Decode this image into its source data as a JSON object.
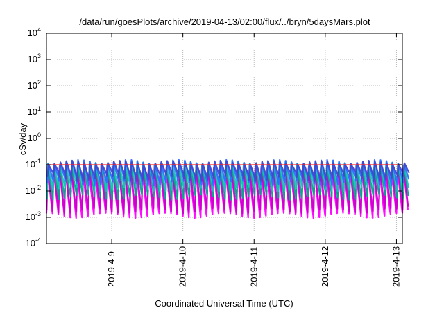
{
  "title": "/data/run/goesPlots/archive/2019-04-13/02:00/flux/../bryn/5daysMars.plot",
  "colors": {
    "grid": "#b8b8b8",
    "frame": "#000000",
    "threshold": "#ff2020",
    "series": [
      "#ff00ff",
      "#cc00cc",
      "#00aa88",
      "#1fbfbf",
      "#2d6cff",
      "#8a2be2",
      "#ff2b2b",
      "#3f48cc"
    ]
  },
  "chart_data": {
    "type": "line",
    "title": "/data/run/goesPlots/archive/2019-04-13/02:00/flux/../bryn/5daysMars.plot",
    "xlabel": "Coordinated Universal Time (UTC)",
    "ylabel": "cSv/day",
    "y_scale": "log",
    "ylim": [
      0.0001,
      10000
    ],
    "y_ticks": [
      {
        "base": "10",
        "exp": "-4",
        "value": 0.0001
      },
      {
        "base": "10",
        "exp": "-3",
        "value": 0.001
      },
      {
        "base": "10",
        "exp": "-2",
        "value": 0.01
      },
      {
        "base": "10",
        "exp": "-1",
        "value": 0.1
      },
      {
        "base": "10",
        "exp": "0",
        "value": 1
      },
      {
        "base": "10",
        "exp": "1",
        "value": 10
      },
      {
        "base": "10",
        "exp": "2",
        "value": 100
      },
      {
        "base": "10",
        "exp": "3",
        "value": 1000
      },
      {
        "base": "10",
        "exp": "4",
        "value": 10000
      }
    ],
    "x_range": [
      "2019-04-08 02:00",
      "2019-04-13 02:00"
    ],
    "x_ticks": [
      {
        "label": "2019-4-9",
        "value": "2019-04-09"
      },
      {
        "label": "2019-4-10",
        "value": "2019-04-10"
      },
      {
        "label": "2019-4-11",
        "value": "2019-04-11"
      },
      {
        "label": "2019-4-12",
        "value": "2019-04-12"
      },
      {
        "label": "2019-4-13",
        "value": "2019-04-13"
      }
    ],
    "grid": true,
    "threshold": 0.1,
    "period_hours": 2,
    "series": [
      {
        "color": "#ff00ff",
        "peak": 0.06,
        "trough": 0.0012
      },
      {
        "color": "#cc00cc",
        "peak": 0.08,
        "trough": 0.0018
      },
      {
        "color": "#00aa88",
        "peak": 0.095,
        "trough": 0.006
      },
      {
        "color": "#1fbfbf",
        "peak": 0.11,
        "trough": 0.012
      },
      {
        "color": "#2d6cff",
        "peak": 0.13,
        "trough": 0.02
      },
      {
        "color": "#3f48cc",
        "peak": 0.12,
        "trough": 0.03
      }
    ]
  }
}
